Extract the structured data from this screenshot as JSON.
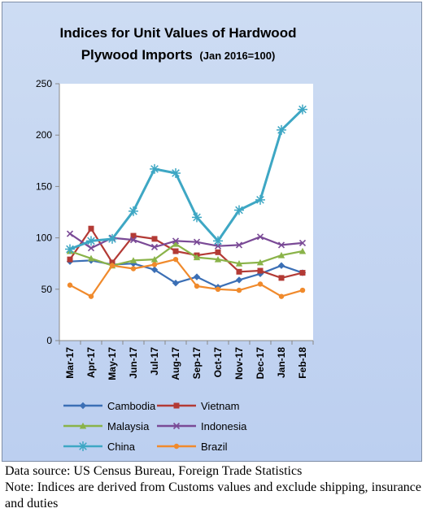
{
  "chart_data": {
    "type": "line",
    "title_line1": "Indices for Unit Values of Hardwood",
    "title_line2": "Plywood Imports",
    "title_suffix": "(Jan 2016=100)",
    "categories": [
      "Mar-17",
      "Apr-17",
      "May-17",
      "Jun-17",
      "Jul-17",
      "Aug-17",
      "Sep-17",
      "Oct-17",
      "Nov-17",
      "Dec-17",
      "Jan-18",
      "Feb-18"
    ],
    "ylim": [
      0,
      250
    ],
    "yticks": [
      0,
      50,
      100,
      150,
      200,
      250
    ],
    "grid": false,
    "legend_position": "bottom",
    "series": [
      {
        "name": "Cambodia",
        "color": "#3b6fb5",
        "marker": "diamond",
        "values": [
          77,
          78,
          74,
          75,
          69,
          56,
          62,
          52,
          59,
          65,
          73,
          66
        ]
      },
      {
        "name": "Vietnam",
        "color": "#b33a35",
        "marker": "square",
        "values": [
          79,
          109,
          76,
          102,
          99,
          87,
          83,
          86,
          67,
          68,
          61,
          66
        ]
      },
      {
        "name": "Malaysia",
        "color": "#8ab349",
        "marker": "triangle",
        "values": [
          87,
          80,
          73,
          78,
          79,
          94,
          81,
          79,
          75,
          76,
          83,
          87
        ]
      },
      {
        "name": "Indonesia",
        "color": "#7a4a96",
        "marker": "cross",
        "values": [
          104,
          90,
          100,
          98,
          91,
          97,
          96,
          92,
          93,
          101,
          93,
          95
        ]
      },
      {
        "name": "China",
        "color": "#3ea7c4",
        "marker": "star",
        "values": [
          89,
          97,
          99,
          126,
          167,
          163,
          120,
          97,
          127,
          137,
          205,
          225
        ]
      },
      {
        "name": "Brazil",
        "color": "#f08a2c",
        "marker": "circle",
        "values": [
          54,
          43,
          73,
          70,
          74,
          79,
          53,
          50,
          49,
          55,
          43,
          49
        ]
      }
    ]
  },
  "footer": {
    "source": "Data source: US Census Bureau, Foreign Trade Statistics",
    "note": "Note: Indices are derived from Customs values and exclude shipping, insurance and duties"
  }
}
